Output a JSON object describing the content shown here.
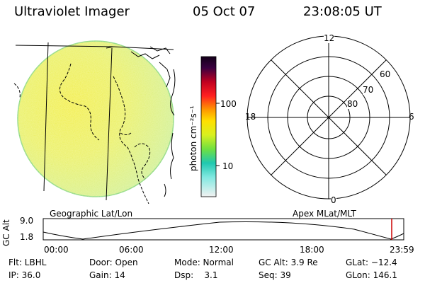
{
  "header": {
    "title": "Ultraviolet Imager",
    "date": "05 Oct 07",
    "time": "23:08:05 UT"
  },
  "left_panel": {
    "label": "Geographic Lat/Lon"
  },
  "colorbar": {
    "unit": "photon cm⁻²s⁻¹",
    "tick_100": "100",
    "tick_10": "10"
  },
  "polar_plot": {
    "label": "Apex MLat/MLT",
    "mlt_top": "12",
    "mlt_left": "18",
    "mlt_right": "6",
    "mlt_bottom": "0",
    "lat_60": "60",
    "lat_70": "70",
    "lat_80": "80"
  },
  "orbit_panel": {
    "ylabel": "GC Alt",
    "y_top": "9.0",
    "y_bottom": "1.8",
    "x_ticks": [
      "00:00",
      "06:00",
      "12:00",
      "18:00",
      "23:59"
    ],
    "marker_time": "23:08",
    "marker_color": "#cc0000"
  },
  "info": {
    "flt": "Flt: LBHL",
    "ip": "IP: 36.0",
    "door": "Door: Open",
    "gain": "Gain: 14",
    "mode": "Mode: Normal",
    "dsp": "Dsp:    3.1",
    "gc_alt": "GC Alt: 3.9 Re",
    "seq": "Seq: 39",
    "glat": "GLat: −12.4",
    "glon": "GLon: 146.1"
  }
}
